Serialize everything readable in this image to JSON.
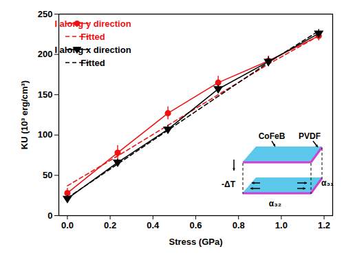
{
  "chart_data": {
    "type": "line",
    "x_label": "Stress (GPa)",
    "y_label": "KU (10³ erg/cm³)",
    "x": [
      0,
      0.235,
      0.47,
      0.705,
      0.94,
      1.175
    ],
    "xlim": [
      -0.04,
      1.24
    ],
    "xticks": [
      {
        "value": 0,
        "label": "0.0"
      },
      {
        "value": 0.2,
        "label": "0.2"
      },
      {
        "value": 0.4,
        "label": "0.4"
      },
      {
        "value": 0.6,
        "label": "0.6"
      },
      {
        "value": 0.8,
        "label": "0.8"
      },
      {
        "value": 1,
        "label": "1.0"
      },
      {
        "value": 1.2,
        "label": "1.2"
      }
    ],
    "ylim": [
      0,
      250
    ],
    "yticks": [
      0,
      50,
      100,
      150,
      200,
      250
    ],
    "legend": "upper left",
    "series": [
      {
        "name": "I along y direction",
        "color": "#ee1111",
        "marker": "circle",
        "line_style": "solid",
        "values": [
          28,
          78,
          127,
          165,
          192,
          223
        ],
        "errors": [
          6,
          9,
          8,
          8,
          6,
          6
        ]
      },
      {
        "name": "Fitted",
        "color": "#ee1111",
        "line_style": "dashed",
        "values": [
          37,
          74,
          112,
          150,
          188,
          223
        ]
      },
      {
        "name": "I along x direction",
        "color": "#000000",
        "marker": "triangle-down",
        "line_style": "solid",
        "values": [
          21,
          66,
          107,
          157,
          191,
          226
        ],
        "errors": [
          4,
          4,
          5,
          5,
          6,
          5
        ]
      },
      {
        "name": "Fitted",
        "color": "#000000",
        "line_style": "dashed",
        "values": [
          22,
          64,
          106,
          148,
          190,
          229
        ]
      }
    ],
    "annotations": [
      "CoFeB",
      "PVDF",
      "-ΔT",
      "α₃₂",
      "α₃₁"
    ]
  }
}
